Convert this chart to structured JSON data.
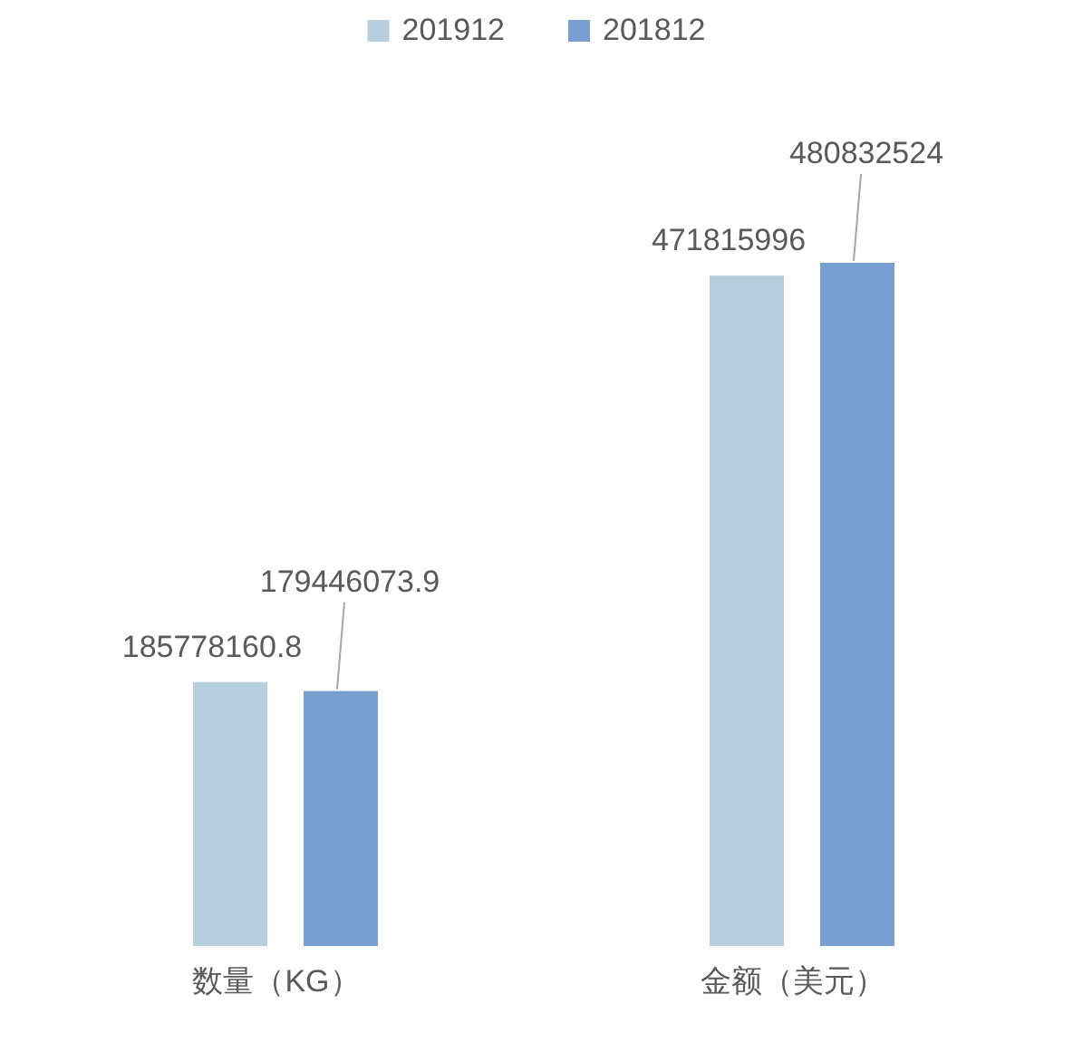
{
  "chart_data": {
    "type": "bar",
    "categories": [
      "数量（KG）",
      "金额（美元）"
    ],
    "series": [
      {
        "name": "201912",
        "color": "#b7cfdd",
        "values": [
          185778160.8,
          471815996
        ]
      },
      {
        "name": "201812",
        "color": "#789fcf",
        "values": [
          179446073.9,
          480832524
        ]
      }
    ],
    "data_labels": true,
    "legend": "top"
  }
}
